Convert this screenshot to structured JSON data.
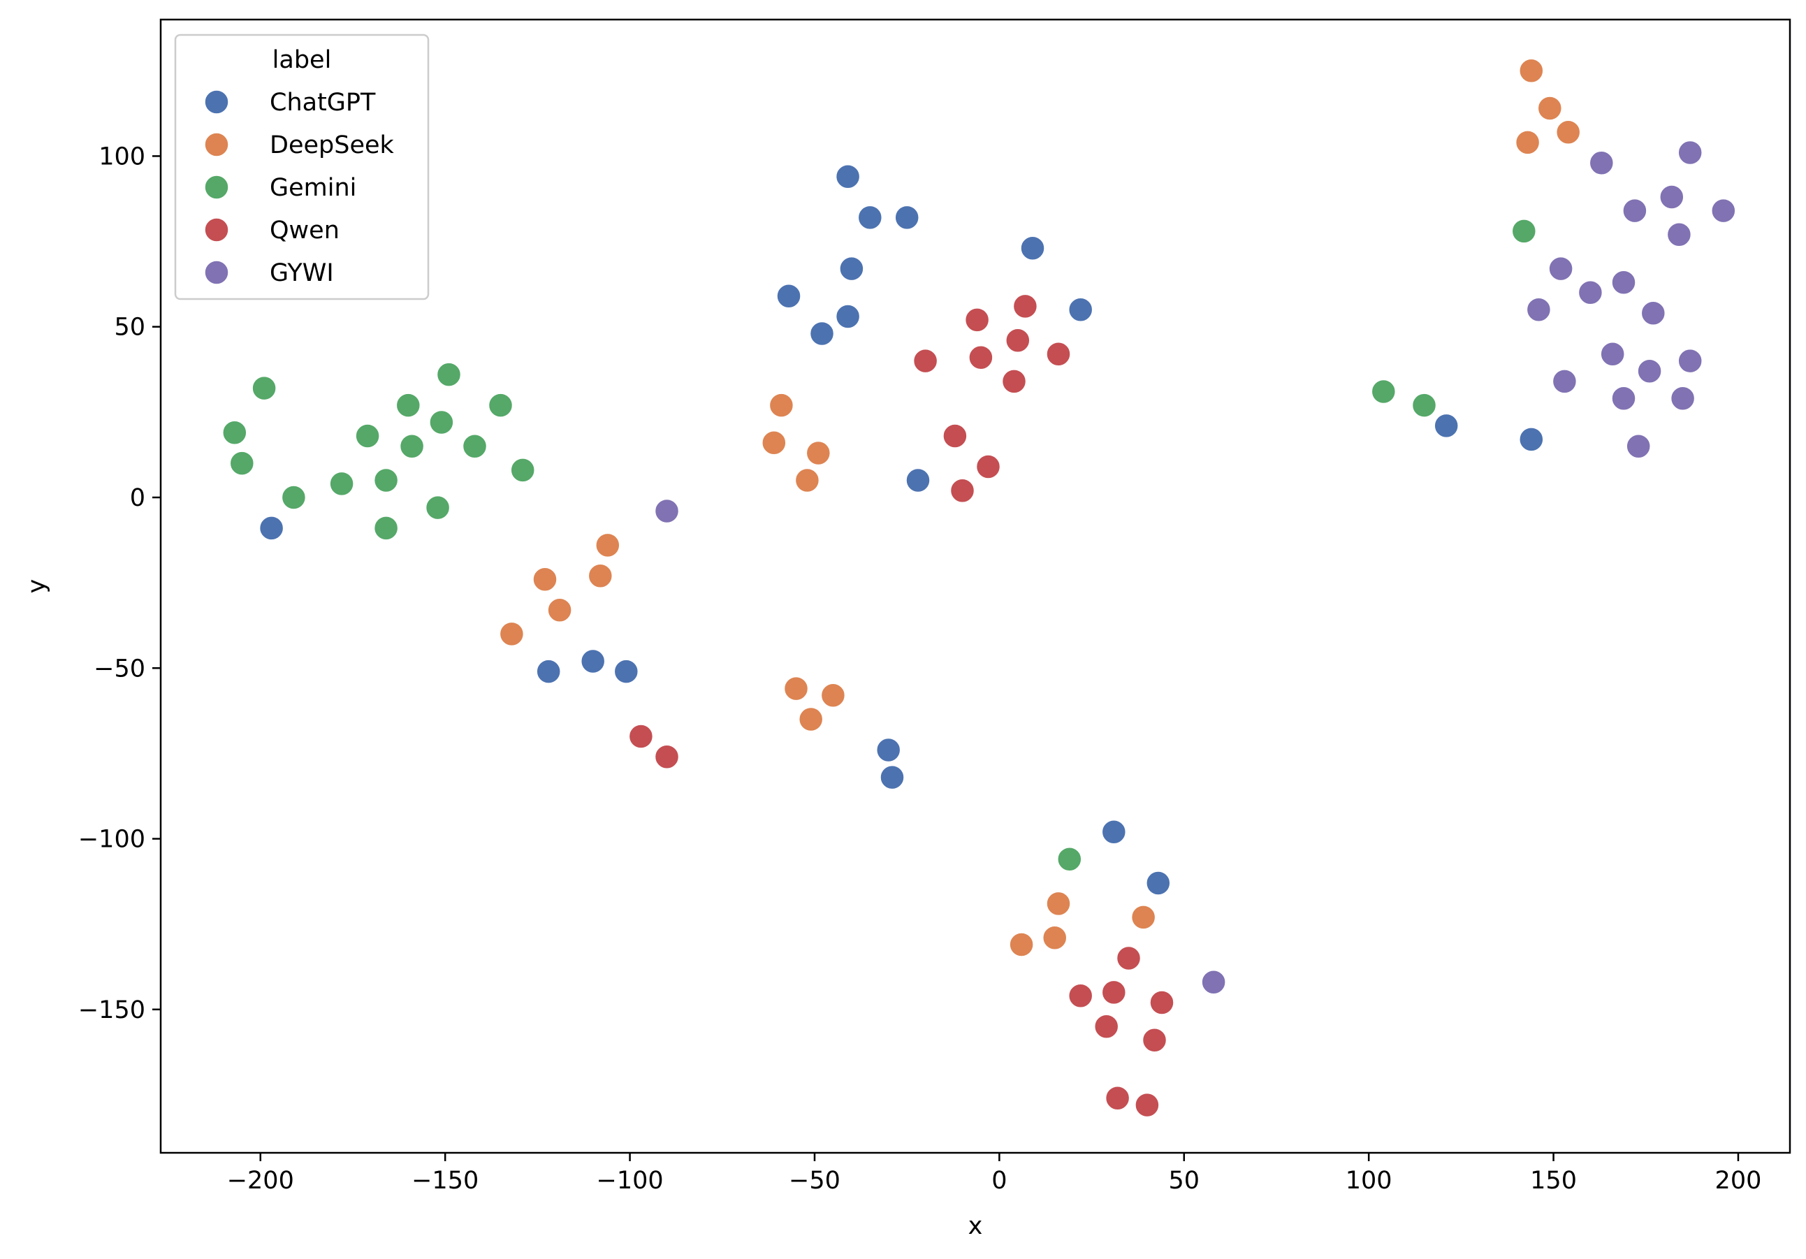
{
  "chart_data": {
    "type": "scatter",
    "xlabel": "x",
    "ylabel": "y",
    "xlim": [
      -227,
      214
    ],
    "ylim": [
      -192,
      140
    ],
    "xticks": [
      -200,
      -150,
      -100,
      -50,
      0,
      50,
      100,
      150,
      200
    ],
    "yticks": [
      -150,
      -100,
      -50,
      0,
      50,
      100
    ],
    "grid": false,
    "legend": {
      "title": "label",
      "position": "top-left"
    },
    "series": [
      {
        "name": "ChatGPT",
        "color": "#4c72b0",
        "points": [
          [
            -197,
            -9
          ],
          [
            -122,
            -51
          ],
          [
            -110,
            -48
          ],
          [
            -101,
            -51
          ],
          [
            -57,
            59
          ],
          [
            -48,
            48
          ],
          [
            -41,
            53
          ],
          [
            -41,
            94
          ],
          [
            -35,
            82
          ],
          [
            -40,
            67
          ],
          [
            -25,
            82
          ],
          [
            9,
            73
          ],
          [
            22,
            55
          ],
          [
            -22,
            5
          ],
          [
            -30,
            -74
          ],
          [
            -29,
            -82
          ],
          [
            31,
            -98
          ],
          [
            43,
            -113
          ],
          [
            121,
            21
          ],
          [
            144,
            17
          ]
        ]
      },
      {
        "name": "DeepSeek",
        "color": "#dd8452",
        "points": [
          [
            -59,
            27
          ],
          [
            -61,
            16
          ],
          [
            -49,
            13
          ],
          [
            -52,
            5
          ],
          [
            -106,
            -14
          ],
          [
            -108,
            -23
          ],
          [
            -123,
            -24
          ],
          [
            -119,
            -33
          ],
          [
            -132,
            -40
          ],
          [
            -55,
            -56
          ],
          [
            -45,
            -58
          ],
          [
            -51,
            -65
          ],
          [
            16,
            -119
          ],
          [
            39,
            -123
          ],
          [
            15,
            -129
          ],
          [
            6,
            -131
          ],
          [
            144,
            125
          ],
          [
            149,
            114
          ],
          [
            154,
            107
          ],
          [
            143,
            104
          ]
        ]
      },
      {
        "name": "Gemini",
        "color": "#55a868",
        "points": [
          [
            -199,
            32
          ],
          [
            -207,
            19
          ],
          [
            -205,
            10
          ],
          [
            -191,
            0
          ],
          [
            -178,
            4
          ],
          [
            -171,
            18
          ],
          [
            -166,
            5
          ],
          [
            -166,
            -9
          ],
          [
            -160,
            27
          ],
          [
            -159,
            15
          ],
          [
            -151,
            22
          ],
          [
            -149,
            36
          ],
          [
            -152,
            -3
          ],
          [
            -142,
            15
          ],
          [
            -135,
            27
          ],
          [
            -129,
            8
          ],
          [
            19,
            -106
          ],
          [
            104,
            31
          ],
          [
            115,
            27
          ],
          [
            142,
            78
          ]
        ]
      },
      {
        "name": "Qwen",
        "color": "#c44e52",
        "points": [
          [
            -6,
            52
          ],
          [
            7,
            56
          ],
          [
            -20,
            40
          ],
          [
            -5,
            41
          ],
          [
            5,
            46
          ],
          [
            16,
            42
          ],
          [
            4,
            34
          ],
          [
            -12,
            18
          ],
          [
            -3,
            9
          ],
          [
            -10,
            2
          ],
          [
            -97,
            -70
          ],
          [
            -90,
            -76
          ],
          [
            35,
            -135
          ],
          [
            22,
            -146
          ],
          [
            31,
            -145
          ],
          [
            44,
            -148
          ],
          [
            29,
            -155
          ],
          [
            42,
            -159
          ],
          [
            32,
            -176
          ],
          [
            40,
            -178
          ]
        ]
      },
      {
        "name": "GYWI",
        "color": "#8172b3",
        "points": [
          [
            -90,
            -4
          ],
          [
            58,
            -142
          ],
          [
            163,
            98
          ],
          [
            187,
            101
          ],
          [
            172,
            84
          ],
          [
            182,
            88
          ],
          [
            184,
            77
          ],
          [
            196,
            84
          ],
          [
            152,
            67
          ],
          [
            146,
            55
          ],
          [
            160,
            60
          ],
          [
            169,
            63
          ],
          [
            177,
            54
          ],
          [
            153,
            34
          ],
          [
            166,
            42
          ],
          [
            176,
            37
          ],
          [
            187,
            40
          ],
          [
            169,
            29
          ],
          [
            185,
            29
          ],
          [
            173,
            15
          ]
        ]
      }
    ]
  }
}
